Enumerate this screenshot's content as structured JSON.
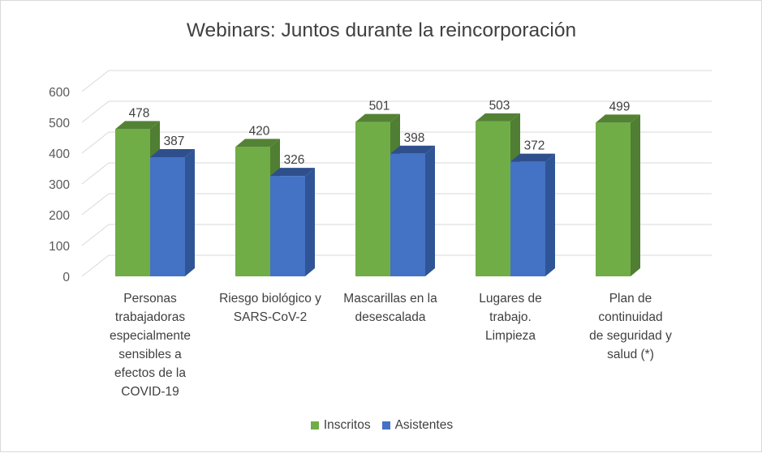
{
  "chart_data": {
    "type": "bar",
    "title": "Webinars: Juntos durante la reincorporación",
    "categories": [
      "Personas\ntrabajadoras\nespecialmente\nsensibles a\nefectos de la\nCOVID-19",
      "Riesgo biológico y\nSARS-CoV-2",
      "Mascarillas en la\ndesescalada",
      "Lugares de\ntrabajo.\nLimpieza",
      "Plan de\ncontinuidad\nde seguridad y\nsalud (*)"
    ],
    "series": [
      {
        "name": "Inscritos",
        "values": [
          478,
          420,
          501,
          503,
          499
        ],
        "color": "#70ad47",
        "side_color": "#507e32",
        "top_color": "#548235"
      },
      {
        "name": "Asistentes",
        "values": [
          387,
          326,
          398,
          372,
          null
        ],
        "color": "#4472c4",
        "side_color": "#2f5597",
        "top_color": "#2e4f8c"
      }
    ],
    "yticks": [
      "0",
      "100",
      "200",
      "300",
      "400",
      "500",
      "600"
    ],
    "ylim": [
      0,
      600
    ],
    "grid": true,
    "legend_position": "bottom",
    "xlabel": "",
    "ylabel": ""
  }
}
